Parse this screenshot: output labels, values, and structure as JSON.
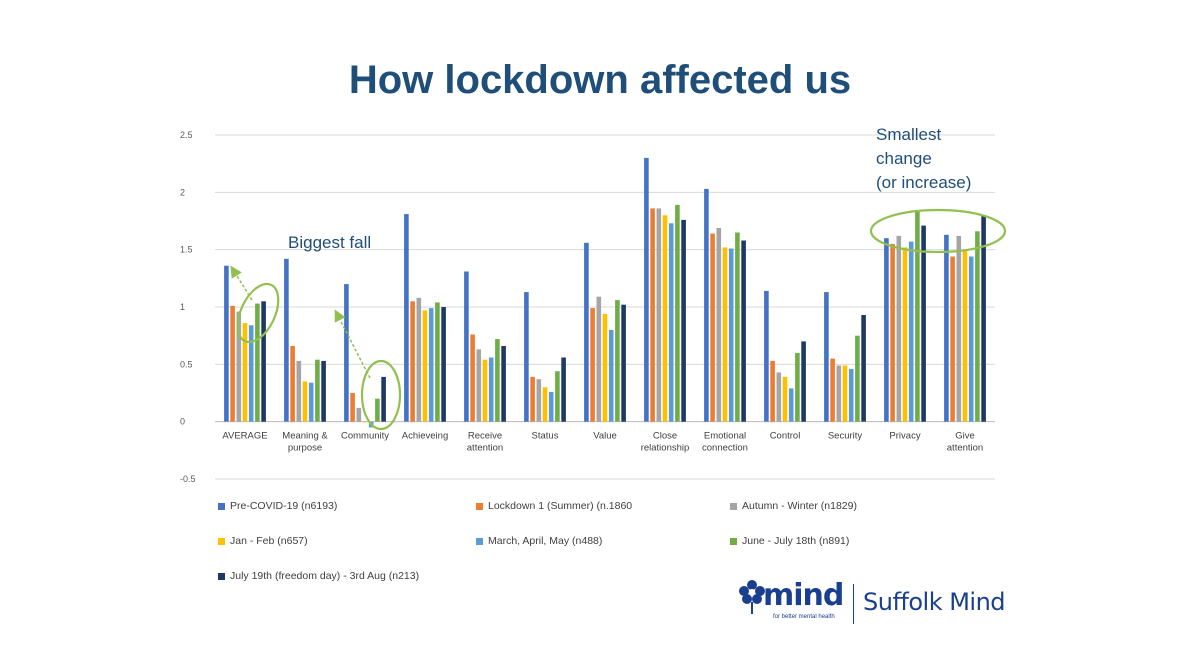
{
  "title": "How lockdown affected us",
  "chart_data": {
    "type": "bar",
    "ylim": [
      -0.5,
      2.5
    ],
    "yticks": [
      "2.5",
      "2",
      "1.5",
      "1",
      "0.5",
      "0",
      "-0.5"
    ],
    "grid": true,
    "legend_position": "bottom",
    "categories": [
      [
        "AVERAGE"
      ],
      [
        "Meaning &",
        "purpose"
      ],
      [
        "Community"
      ],
      [
        "Achieveing"
      ],
      [
        "Receive",
        "attention"
      ],
      [
        "Status"
      ],
      [
        "Value"
      ],
      [
        "Close",
        "relationship"
      ],
      [
        "Emotional",
        "connection"
      ],
      [
        "Control"
      ],
      [
        "Security"
      ],
      [
        "Privacy"
      ],
      [
        "Give",
        "attention"
      ]
    ],
    "series": [
      {
        "name": "Pre-COVID-19 (n6193)",
        "color": "#4472c4",
        "values": [
          1.36,
          1.42,
          1.2,
          1.81,
          1.31,
          1.13,
          1.56,
          2.3,
          2.03,
          1.14,
          1.13,
          1.6,
          1.63
        ]
      },
      {
        "name": "Lockdown 1 (Summer) (n.1860",
        "color": "#ed7d31",
        "values": [
          1.01,
          0.66,
          0.25,
          1.05,
          0.76,
          0.39,
          0.99,
          1.86,
          1.64,
          0.53,
          0.55,
          1.55,
          1.44
        ]
      },
      {
        "name": "Autumn - Winter (n1829)",
        "color": "#a5a5a5",
        "values": [
          0.96,
          0.53,
          0.12,
          1.08,
          0.63,
          0.37,
          1.09,
          1.86,
          1.69,
          0.43,
          0.49,
          1.62,
          1.62
        ]
      },
      {
        "name": "Jan - Feb (n657)",
        "color": "#ffc000",
        "values": [
          0.86,
          0.35,
          0.0,
          0.97,
          0.54,
          0.3,
          0.94,
          1.8,
          1.52,
          0.39,
          0.49,
          1.52,
          1.5
        ]
      },
      {
        "name": "March, April, May (n488)",
        "color": "#5b9bd5",
        "values": [
          0.84,
          0.34,
          -0.05,
          0.99,
          0.56,
          0.26,
          0.8,
          1.73,
          1.51,
          0.29,
          0.46,
          1.57,
          1.44
        ]
      },
      {
        "name": "June - July 18th (n891)",
        "color": "#70ad47",
        "values": [
          1.03,
          0.54,
          0.2,
          1.04,
          0.72,
          0.44,
          1.06,
          1.89,
          1.65,
          0.6,
          0.75,
          1.84,
          1.66
        ]
      },
      {
        "name": "July 19th (freedom day) - 3rd Aug (n213)",
        "color": "#203864",
        "values": [
          1.05,
          0.53,
          0.39,
          1.0,
          0.66,
          0.56,
          1.02,
          1.76,
          1.58,
          0.7,
          0.93,
          1.71,
          1.8
        ]
      }
    ],
    "annotations": {
      "biggest_fall": "Biggest fall",
      "smallest_change": [
        "Smallest",
        "change",
        "(or increase)"
      ]
    }
  },
  "logo": {
    "mind": "mind",
    "tagline": "for better mental health",
    "suffolk": "Suffolk Mind",
    "accent": "#1b3f8f"
  }
}
